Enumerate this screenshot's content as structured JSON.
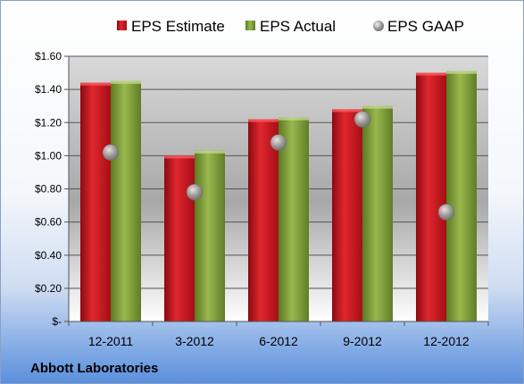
{
  "company": "Abbott Laboratories",
  "chart_data": {
    "type": "bar",
    "title": "",
    "xlabel": "",
    "ylabel": "",
    "categories": [
      "12-2011",
      "3-2012",
      "6-2012",
      "9-2012",
      "12-2012"
    ],
    "series": [
      {
        "name": "EPS Estimate",
        "kind": "bar",
        "color": "#c8141c",
        "values": [
          1.44,
          1.0,
          1.22,
          1.28,
          1.5
        ]
      },
      {
        "name": "EPS Actual",
        "kind": "bar",
        "color": "#7a9a34",
        "values": [
          1.45,
          1.03,
          1.23,
          1.3,
          1.51
        ]
      },
      {
        "name": "EPS GAAP",
        "kind": "marker",
        "color": "#8c8c8c",
        "values": [
          1.02,
          0.78,
          1.08,
          1.22,
          0.66
        ]
      }
    ],
    "ylim": [
      0,
      1.6
    ],
    "yticks": [
      0,
      0.2,
      0.4,
      0.6,
      0.8,
      1.0,
      1.2,
      1.4,
      1.6
    ],
    "ytick_labels": [
      "$-",
      "$0.20",
      "$0.40",
      "$0.60",
      "$0.80",
      "$1.00",
      "$1.20",
      "$1.40",
      "$1.60"
    ],
    "grid": true,
    "legend_position": "top"
  }
}
